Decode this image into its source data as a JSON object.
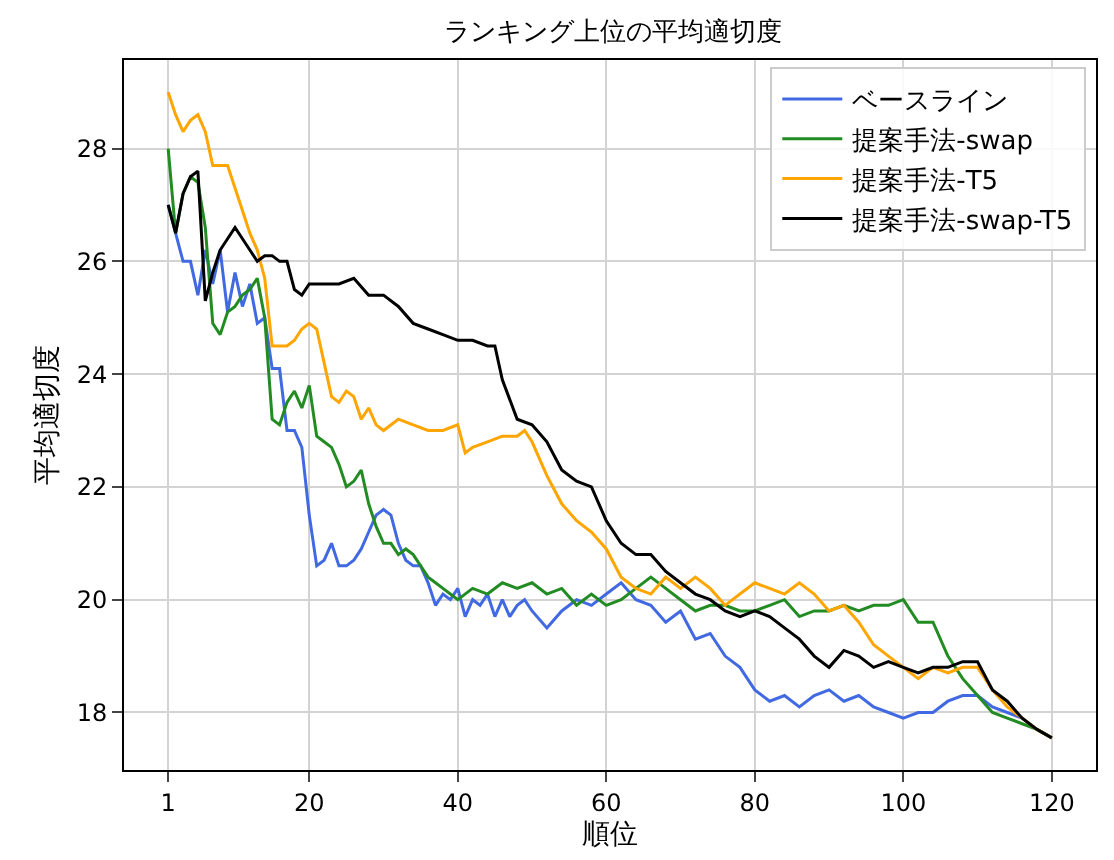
{
  "chart_data": {
    "type": "line",
    "title": "ランキング上位の平均適切度",
    "xlabel": "順位",
    "ylabel": "平均適切度",
    "xlim": [
      -4.95,
      125.95
    ],
    "xticks": [
      1,
      20,
      40,
      60,
      80,
      100,
      120
    ],
    "ylim": [
      16.98,
      29.57
    ],
    "yticks": [
      18,
      20,
      22,
      24,
      26,
      28
    ],
    "grid": true,
    "legend": "top right",
    "series": [
      {
        "name": "ベースライン",
        "color": "#4169e1",
        "x": [
          1,
          2,
          3,
          4,
          5,
          6,
          7,
          8,
          9,
          10,
          11,
          12,
          13,
          14,
          15,
          16,
          17,
          18,
          19,
          20,
          21,
          22,
          23,
          24,
          25,
          26,
          27,
          28,
          29,
          30,
          31,
          32,
          33,
          34,
          35,
          36,
          37,
          38,
          39,
          40,
          41,
          42,
          43,
          44,
          45,
          46,
          47,
          48,
          49,
          50,
          52,
          54,
          56,
          58,
          60,
          62,
          64,
          66,
          68,
          70,
          72,
          74,
          76,
          78,
          80,
          82,
          84,
          86,
          88,
          90,
          92,
          94,
          96,
          98,
          100,
          102,
          104,
          106,
          108,
          110,
          112,
          114,
          116,
          118,
          120
        ],
        "values": [
          27.0,
          26.5,
          26.0,
          26.0,
          25.4,
          26.2,
          25.6,
          26.2,
          25.1,
          25.8,
          25.2,
          25.6,
          24.9,
          25.0,
          24.1,
          24.1,
          23.0,
          23.0,
          22.7,
          21.5,
          20.6,
          20.7,
          21.0,
          20.6,
          20.6,
          20.7,
          20.9,
          21.2,
          21.5,
          21.6,
          21.5,
          21.0,
          20.7,
          20.6,
          20.6,
          20.3,
          19.9,
          20.1,
          20.0,
          20.2,
          19.7,
          20.0,
          19.9,
          20.1,
          19.7,
          20.0,
          19.7,
          19.9,
          20.0,
          19.8,
          19.5,
          19.8,
          20.0,
          19.9,
          20.1,
          20.3,
          20.0,
          19.9,
          19.6,
          19.8,
          19.3,
          19.4,
          19.0,
          18.8,
          18.4,
          18.2,
          18.3,
          18.1,
          18.3,
          18.4,
          18.2,
          18.3,
          18.1,
          18.0,
          17.9,
          18.0,
          18.0,
          18.2,
          18.3,
          18.3,
          18.1,
          18.0,
          17.9,
          17.7,
          17.55
        ]
      },
      {
        "name": "提案手法-swap",
        "color": "#228b22",
        "x": [
          1,
          2,
          3,
          4,
          5,
          6,
          7,
          8,
          9,
          10,
          11,
          12,
          13,
          14,
          15,
          16,
          17,
          18,
          19,
          20,
          21,
          22,
          23,
          24,
          25,
          26,
          27,
          28,
          29,
          30,
          31,
          32,
          33,
          34,
          35,
          36,
          37,
          38,
          39,
          40,
          42,
          44,
          46,
          48,
          50,
          52,
          54,
          56,
          58,
          60,
          62,
          64,
          66,
          68,
          70,
          72,
          74,
          76,
          78,
          80,
          82,
          84,
          86,
          88,
          90,
          92,
          94,
          96,
          98,
          100,
          102,
          104,
          106,
          108,
          110,
          112,
          114,
          116,
          118,
          120
        ],
        "values": [
          28.0,
          26.5,
          27.2,
          27.5,
          27.4,
          26.6,
          24.9,
          24.7,
          25.1,
          25.2,
          25.4,
          25.5,
          25.7,
          25.0,
          23.2,
          23.1,
          23.5,
          23.7,
          23.4,
          23.8,
          22.9,
          22.8,
          22.7,
          22.4,
          22.0,
          22.1,
          22.3,
          21.7,
          21.3,
          21.0,
          21.0,
          20.8,
          20.9,
          20.8,
          20.6,
          20.4,
          20.3,
          20.2,
          20.1,
          20.0,
          20.2,
          20.1,
          20.3,
          20.2,
          20.3,
          20.1,
          20.2,
          19.9,
          20.1,
          19.9,
          20.0,
          20.2,
          20.4,
          20.2,
          20.0,
          19.8,
          19.9,
          19.9,
          19.8,
          19.8,
          19.9,
          20.0,
          19.7,
          19.8,
          19.8,
          19.9,
          19.8,
          19.9,
          19.9,
          20.0,
          19.6,
          19.6,
          19.0,
          18.6,
          18.3,
          18.0,
          17.9,
          17.8,
          17.7,
          17.55
        ]
      },
      {
        "name": "提案手法-T5",
        "color": "#ffa500",
        "x": [
          1,
          2,
          3,
          4,
          5,
          6,
          7,
          8,
          9,
          10,
          11,
          12,
          13,
          14,
          15,
          16,
          17,
          18,
          19,
          20,
          21,
          22,
          23,
          24,
          25,
          26,
          27,
          28,
          29,
          30,
          32,
          34,
          36,
          38,
          40,
          41,
          42,
          44,
          46,
          48,
          49,
          50,
          52,
          54,
          56,
          58,
          60,
          62,
          64,
          66,
          68,
          70,
          72,
          74,
          76,
          78,
          80,
          82,
          84,
          86,
          88,
          90,
          92,
          94,
          96,
          98,
          100,
          102,
          104,
          106,
          108,
          110,
          112,
          114,
          116,
          118,
          120
        ],
        "values": [
          29.0,
          28.6,
          28.3,
          28.5,
          28.6,
          28.3,
          27.7,
          27.7,
          27.7,
          27.3,
          26.9,
          26.5,
          26.2,
          25.7,
          24.5,
          24.5,
          24.5,
          24.6,
          24.8,
          24.9,
          24.8,
          24.2,
          23.6,
          23.5,
          23.7,
          23.6,
          23.2,
          23.4,
          23.1,
          23.0,
          23.2,
          23.1,
          23.0,
          23.0,
          23.1,
          22.6,
          22.7,
          22.8,
          22.9,
          22.9,
          23.0,
          22.8,
          22.2,
          21.7,
          21.4,
          21.2,
          20.9,
          20.4,
          20.2,
          20.1,
          20.4,
          20.2,
          20.4,
          20.2,
          19.9,
          20.1,
          20.3,
          20.2,
          20.1,
          20.3,
          20.1,
          19.8,
          19.9,
          19.6,
          19.2,
          19.0,
          18.8,
          18.6,
          18.8,
          18.7,
          18.8,
          18.8,
          18.4,
          18.1,
          17.9,
          17.7,
          17.55
        ]
      },
      {
        "name": "提案手法-swap-T5",
        "color": "#000000",
        "x": [
          1,
          2,
          3,
          4,
          5,
          6,
          7,
          8,
          9,
          10,
          11,
          12,
          13,
          14,
          15,
          16,
          17,
          18,
          19,
          20,
          22,
          24,
          26,
          28,
          30,
          32,
          34,
          36,
          38,
          40,
          42,
          44,
          45,
          46,
          48,
          50,
          52,
          54,
          56,
          58,
          60,
          62,
          64,
          66,
          68,
          70,
          72,
          74,
          76,
          78,
          80,
          82,
          84,
          86,
          88,
          90,
          92,
          94,
          96,
          98,
          100,
          102,
          104,
          106,
          108,
          110,
          112,
          114,
          116,
          118,
          120
        ],
        "values": [
          27.0,
          26.5,
          27.2,
          27.5,
          27.6,
          25.3,
          25.8,
          26.2,
          26.4,
          26.6,
          26.4,
          26.2,
          26.0,
          26.1,
          26.1,
          26.0,
          26.0,
          25.5,
          25.4,
          25.6,
          25.6,
          25.6,
          25.7,
          25.4,
          25.4,
          25.2,
          24.9,
          24.8,
          24.7,
          24.6,
          24.6,
          24.5,
          24.5,
          23.9,
          23.2,
          23.1,
          22.8,
          22.3,
          22.1,
          22.0,
          21.4,
          21.0,
          20.8,
          20.8,
          20.5,
          20.3,
          20.1,
          20.0,
          19.8,
          19.7,
          19.8,
          19.7,
          19.5,
          19.3,
          19.0,
          18.8,
          19.1,
          19.0,
          18.8,
          18.9,
          18.8,
          18.7,
          18.8,
          18.8,
          18.9,
          18.9,
          18.4,
          18.2,
          17.9,
          17.7,
          17.55
        ]
      }
    ]
  }
}
